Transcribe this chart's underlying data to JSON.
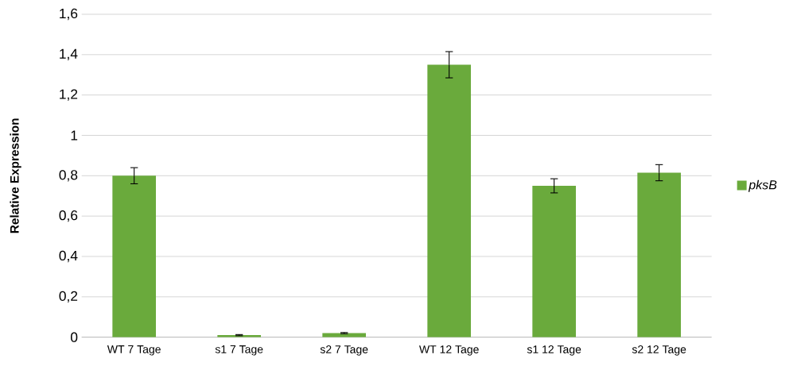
{
  "chart_data": {
    "type": "bar",
    "ylabel": "Relative Expression",
    "categories": [
      "WT 7 Tage",
      "s1 7 Tage",
      "s2 7 Tage",
      "WT 12 Tage",
      "s1 12 Tage",
      "s2 12 Tage"
    ],
    "series": [
      {
        "name": "pksB",
        "color": "#6aaa3c",
        "values": [
          0.8,
          0.01,
          0.02,
          1.35,
          0.75,
          0.815
        ],
        "errors": [
          0.04,
          0.003,
          0.003,
          0.065,
          0.035,
          0.04
        ]
      }
    ],
    "ylim": [
      0,
      1.6
    ],
    "yticks": [
      {
        "value": 0,
        "label": "0"
      },
      {
        "value": 0.2,
        "label": "0,2"
      },
      {
        "value": 0.4,
        "label": "0,4"
      },
      {
        "value": 0.6,
        "label": "0,6"
      },
      {
        "value": 0.8,
        "label": "0,8"
      },
      {
        "value": 1,
        "label": "1"
      },
      {
        "value": 1.2,
        "label": "1,2"
      },
      {
        "value": 1.4,
        "label": "1,4"
      },
      {
        "value": 1.6,
        "label": "1,6"
      }
    ],
    "grid": "y",
    "legend": "right"
  }
}
